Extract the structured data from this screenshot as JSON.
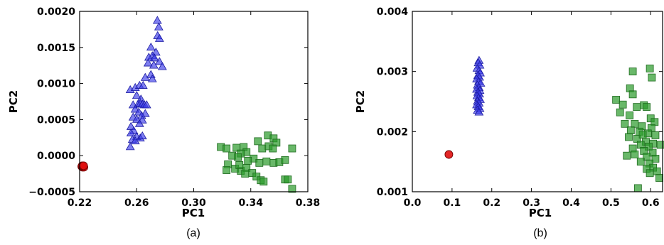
{
  "chart_data": [
    {
      "type": "scatter",
      "caption": "(a)",
      "xlabel": "PC1",
      "ylabel": "PC2",
      "xlim": [
        0.22,
        0.38
      ],
      "ylim": [
        -0.0005,
        0.002
      ],
      "xticks": [
        "0.22",
        "0.26",
        "0.30",
        "0.34",
        "0.38"
      ],
      "yticks": [
        "−0.0005",
        "0.0000",
        "0.0005",
        "0.0010",
        "0.0015",
        "0.0020"
      ],
      "grid": false,
      "series": [
        {
          "marker": "triangle",
          "color": "#3a3ae8",
          "points": [
            [
              0.2745,
              0.00187
            ],
            [
              0.2755,
              0.00178
            ],
            [
              0.2747,
              0.00166
            ],
            [
              0.276,
              0.00162
            ],
            [
              0.27,
              0.0015
            ],
            [
              0.2735,
              0.00143
            ],
            [
              0.271,
              0.00138
            ],
            [
              0.2685,
              0.00136
            ],
            [
              0.2725,
              0.00135
            ],
            [
              0.276,
              0.0013
            ],
            [
              0.268,
              0.00128
            ],
            [
              0.278,
              0.00123
            ],
            [
              0.272,
              0.00125
            ],
            [
              0.27,
              0.00112
            ],
            [
              0.266,
              0.00108
            ],
            [
              0.271,
              0.00106
            ],
            [
              0.2555,
              0.00091
            ],
            [
              0.259,
              0.00094
            ],
            [
              0.262,
              0.00097
            ],
            [
              0.2645,
              0.00097
            ],
            [
              0.26,
              0.00083
            ],
            [
              0.263,
              0.00078
            ],
            [
              0.2575,
              0.0007
            ],
            [
              0.261,
              0.00071
            ],
            [
              0.2625,
              0.00072
            ],
            [
              0.264,
              0.00071
            ],
            [
              0.2655,
              0.0007
            ],
            [
              0.267,
              0.0007
            ],
            [
              0.259,
              0.00064
            ],
            [
              0.2615,
              0.0006
            ],
            [
              0.266,
              0.00058
            ],
            [
              0.2635,
              0.00055
            ],
            [
              0.2575,
              0.00053
            ],
            [
              0.26,
              0.0005
            ],
            [
              0.264,
              0.00049
            ],
            [
              0.256,
              0.0004
            ],
            [
              0.262,
              0.00044
            ],
            [
              0.258,
              0.00034
            ],
            [
              0.256,
              0.00031
            ],
            [
              0.26,
              0.00026
            ],
            [
              0.2625,
              0.00024
            ],
            [
              0.264,
              0.00027
            ],
            [
              0.257,
              0.00022
            ],
            [
              0.259,
              0.0002
            ],
            [
              0.2555,
              0.00012
            ]
          ]
        },
        {
          "marker": "square",
          "color": "#2a9a2a",
          "points": [
            [
              0.319,
              0.00012
            ],
            [
              0.323,
              0.0001
            ],
            [
              0.33,
              0.00011
            ],
            [
              0.335,
              0.00012
            ],
            [
              0.352,
              0.00028
            ],
            [
              0.356,
              0.00024
            ],
            [
              0.358,
              0.00018
            ],
            [
              0.345,
              0.0002
            ],
            [
              0.348,
              0.0001
            ],
            [
              0.3525,
              0.00013
            ],
            [
              0.3555,
              0.0001
            ],
            [
              0.369,
              0.0001
            ],
            [
              0.337,
              5e-05
            ],
            [
              0.333,
              3e-05
            ],
            [
              0.327,
              0.0
            ],
            [
              0.331,
              -2e-05
            ],
            [
              0.342,
              -4e-05
            ],
            [
              0.338,
              -7e-05
            ],
            [
              0.346,
              -0.0001
            ],
            [
              0.351,
              -8e-05
            ],
            [
              0.356,
              -0.0001
            ],
            [
              0.36,
              -9e-05
            ],
            [
              0.364,
              -6e-05
            ],
            [
              0.324,
              -0.00012
            ],
            [
              0.329,
              -0.00018
            ],
            [
              0.333,
              -0.00021
            ],
            [
              0.337,
              -0.00017
            ],
            [
              0.341,
              -0.00024
            ],
            [
              0.336,
              -0.00025
            ],
            [
              0.344,
              -0.00029
            ],
            [
              0.347,
              -0.00034
            ],
            [
              0.349,
              -0.00036
            ],
            [
              0.364,
              -0.00033
            ],
            [
              0.366,
              -0.00033
            ],
            [
              0.369,
              -0.00046
            ],
            [
              0.323,
              -0.0002
            ],
            [
              0.332,
              -0.00013
            ]
          ]
        },
        {
          "marker": "circle",
          "color": "#e01010",
          "points": [
            [
              0.2215,
              -0.00015
            ],
            [
              0.222,
              -0.00016
            ],
            [
              0.2225,
              -0.00015
            ],
            [
              0.223,
              -0.00016
            ],
            [
              0.2218,
              -0.00014
            ],
            [
              0.2228,
              -0.00014
            ]
          ]
        }
      ]
    },
    {
      "type": "scatter",
      "caption": "(b)",
      "xlabel": "PC1",
      "ylabel": "PC2",
      "xlim": [
        0.0,
        0.63
      ],
      "ylim": [
        0.001,
        0.004
      ],
      "xticks": [
        "0.0",
        "0.1",
        "0.2",
        "0.3",
        "0.4",
        "0.5",
        "0.6"
      ],
      "yticks": [
        "0.001",
        "0.002",
        "0.003",
        "0.004"
      ],
      "grid": false,
      "series": [
        {
          "marker": "triangle",
          "color": "#3a3ae8",
          "points": [
            [
              0.168,
              0.00318
            ],
            [
              0.166,
              0.00314
            ],
            [
              0.17,
              0.0031
            ],
            [
              0.163,
              0.00305
            ],
            [
              0.168,
              0.00301
            ],
            [
              0.171,
              0.00297
            ],
            [
              0.165,
              0.00293
            ],
            [
              0.169,
              0.0029
            ],
            [
              0.162,
              0.00287
            ],
            [
              0.167,
              0.00283
            ],
            [
              0.172,
              0.0028
            ],
            [
              0.164,
              0.00277
            ],
            [
              0.168,
              0.00273
            ],
            [
              0.162,
              0.0027
            ],
            [
              0.17,
              0.00268
            ],
            [
              0.165,
              0.00265
            ],
            [
              0.169,
              0.00262
            ],
            [
              0.163,
              0.00259
            ],
            [
              0.167,
              0.00256
            ],
            [
              0.171,
              0.00253
            ],
            [
              0.164,
              0.0025
            ],
            [
              0.168,
              0.00247
            ],
            [
              0.162,
              0.00244
            ],
            [
              0.166,
              0.00241
            ],
            [
              0.17,
              0.00238
            ],
            [
              0.164,
              0.00235
            ],
            [
              0.168,
              0.00232
            ]
          ]
        },
        {
          "marker": "square",
          "color": "#2a9a2a",
          "points": [
            [
              0.555,
              0.003
            ],
            [
              0.598,
              0.00305
            ],
            [
              0.603,
              0.0029
            ],
            [
              0.548,
              0.00272
            ],
            [
              0.513,
              0.00253
            ],
            [
              0.53,
              0.00245
            ],
            [
              0.555,
              0.00262
            ],
            [
              0.565,
              0.00241
            ],
            [
              0.583,
              0.00244
            ],
            [
              0.59,
              0.00241
            ],
            [
              0.523,
              0.00232
            ],
            [
              0.547,
              0.00227
            ],
            [
              0.6,
              0.00222
            ],
            [
              0.61,
              0.00216
            ],
            [
              0.535,
              0.00213
            ],
            [
              0.56,
              0.00213
            ],
            [
              0.578,
              0.00209
            ],
            [
              0.602,
              0.00206
            ],
            [
              0.55,
              0.00202
            ],
            [
              0.572,
              0.002
            ],
            [
              0.593,
              0.00197
            ],
            [
              0.612,
              0.00194
            ],
            [
              0.545,
              0.00191
            ],
            [
              0.566,
              0.00188
            ],
            [
              0.588,
              0.00183
            ],
            [
              0.606,
              0.0018
            ],
            [
              0.575,
              0.00178
            ],
            [
              0.595,
              0.00175
            ],
            [
              0.555,
              0.00172
            ],
            [
              0.583,
              0.00168
            ],
            [
              0.605,
              0.00165
            ],
            [
              0.56,
              0.00162
            ],
            [
              0.59,
              0.00158
            ],
            [
              0.612,
              0.00155
            ],
            [
              0.575,
              0.0015
            ],
            [
              0.597,
              0.00147
            ],
            [
              0.606,
              0.0014
            ],
            [
              0.59,
              0.00138
            ],
            [
              0.616,
              0.00134
            ],
            [
              0.598,
              0.00131
            ],
            [
              0.622,
              0.00123
            ],
            [
              0.568,
              0.00106
            ],
            [
              0.54,
              0.0016
            ],
            [
              0.58,
              0.00195
            ],
            [
              0.625,
              0.00178
            ]
          ]
        },
        {
          "marker": "circle",
          "color": "#e01010",
          "points": [
            [
              0.092,
              0.00162
            ]
          ]
        }
      ]
    }
  ]
}
